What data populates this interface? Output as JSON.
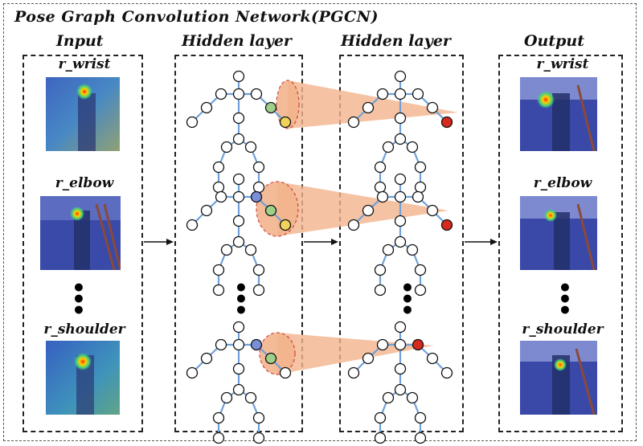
{
  "title": "Pose Graph Convolution Network(PGCN)",
  "columns": {
    "input": "Input",
    "hidden1": "Hidden layer",
    "hidden2": "Hidden layer",
    "output": "Output"
  },
  "keypoints": {
    "input": [
      "r_wrist",
      "r_elbow",
      "r_shoulder"
    ],
    "output": [
      "r_wrist",
      "r_elbow",
      "r_shoulder"
    ]
  },
  "ellipsis": "•\n•\n•",
  "colors": {
    "edge": "#6fa0d8",
    "node_fill": "#ffffff",
    "node_green": "#9fd08a",
    "node_yellow": "#f2d35a",
    "node_blue": "#7a8fd8",
    "node_red": "#d62a1e",
    "cone": "#f2b48c",
    "heat_bg": "#2c3a8c"
  },
  "icons": {
    "arrow": "right-arrow-icon",
    "skeleton": "pose-graph-icon"
  }
}
